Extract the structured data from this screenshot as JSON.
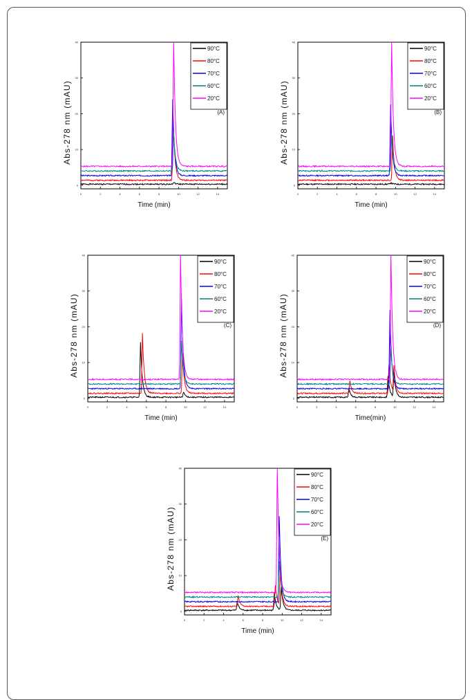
{
  "chart_data": [
    {
      "type": "line",
      "panel_label": "(A)",
      "xlabel": "Time (min)",
      "ylabel": "Abs-278 nm (mAU)",
      "xticks": [
        "0",
        "2",
        "4",
        "6",
        "8",
        "10",
        "12",
        "14"
      ],
      "yticks": [
        "0",
        "10",
        "20",
        "30",
        "40"
      ],
      "xlim": [
        0,
        15
      ],
      "ylim": [
        -1,
        40
      ],
      "legend": [
        "90°C",
        "80°C",
        "70°C",
        "60°C",
        "20°C"
      ],
      "series": [
        {
          "name": "90°C",
          "color": "#000000",
          "baseline": 0.3,
          "peaks": [
            {
              "t": 9.5,
              "h": 0.5
            }
          ]
        },
        {
          "name": "80°C",
          "color": "#ff0000",
          "baseline": 1.4,
          "peaks": [
            {
              "t": 9.45,
              "h": 18.0
            }
          ]
        },
        {
          "name": "70°C",
          "color": "#0000ff",
          "baseline": 2.7,
          "peaks": [
            {
              "t": 9.4,
              "h": 21.5
            }
          ]
        },
        {
          "name": "60°C",
          "color": "#008080",
          "baseline": 4.0,
          "peaks": [
            {
              "t": 9.5,
              "h": 11.0
            }
          ]
        },
        {
          "name": "20°C",
          "color": "#ff00ff",
          "baseline": 5.3,
          "peaks": [
            {
              "t": 9.5,
              "h": 36.5
            }
          ]
        }
      ]
    },
    {
      "type": "line",
      "panel_label": "(B)",
      "xlabel": "Time (min)",
      "ylabel": "Abs-278 nm (mAU)",
      "xticks": [
        "0",
        "2",
        "4",
        "6",
        "8",
        "10",
        "12",
        "14"
      ],
      "yticks": [
        "0",
        "10",
        "20",
        "30",
        "40"
      ],
      "xlim": [
        0,
        15
      ],
      "ylim": [
        -1,
        40
      ],
      "legend": [
        "90°C",
        "80°C",
        "70°C",
        "60°C",
        "20°C"
      ],
      "series": [
        {
          "name": "90°C",
          "color": "#000000",
          "baseline": 0.3,
          "peaks": [
            {
              "t": 9.5,
              "h": 0.4
            }
          ]
        },
        {
          "name": "80°C",
          "color": "#ff0000",
          "baseline": 1.4,
          "peaks": [
            {
              "t": 9.7,
              "h": 12.5
            }
          ]
        },
        {
          "name": "70°C",
          "color": "#0000ff",
          "baseline": 2.7,
          "peaks": [
            {
              "t": 9.5,
              "h": 20.0
            }
          ]
        },
        {
          "name": "60°C",
          "color": "#008080",
          "baseline": 4.0,
          "peaks": [
            {
              "t": 9.6,
              "h": 10.0
            }
          ]
        },
        {
          "name": "20°C",
          "color": "#ff00ff",
          "baseline": 5.3,
          "peaks": [
            {
              "t": 9.6,
              "h": 35.5
            }
          ]
        }
      ]
    },
    {
      "type": "line",
      "panel_label": "(C)",
      "xlabel": "Time (min)",
      "ylabel": "Abs-278 nm (mAU)",
      "xticks": [
        "0",
        "2",
        "4",
        "6",
        "8",
        "10",
        "12",
        "14"
      ],
      "yticks": [
        "0",
        "10",
        "20",
        "30",
        "40"
      ],
      "xlim": [
        0,
        15
      ],
      "ylim": [
        -1,
        40
      ],
      "legend": [
        "90°C",
        "80°C",
        "70°C",
        "60°C",
        "20°C"
      ],
      "series": [
        {
          "name": "90°C",
          "color": "#000000",
          "baseline": 0.3,
          "peaks": [
            {
              "t": 5.4,
              "h": 15.5
            },
            {
              "t": 9.8,
              "h": 1.5
            }
          ]
        },
        {
          "name": "80°C",
          "color": "#ff0000",
          "baseline": 1.4,
          "peaks": [
            {
              "t": 5.6,
              "h": 17.0
            },
            {
              "t": 9.7,
              "h": 11.0
            }
          ]
        },
        {
          "name": "70°C",
          "color": "#0000ff",
          "baseline": 2.7,
          "peaks": [
            {
              "t": 9.6,
              "h": 25.0
            }
          ]
        },
        {
          "name": "60°C",
          "color": "#008080",
          "baseline": 4.0,
          "peaks": [
            {
              "t": 9.6,
              "h": 12.0
            }
          ]
        },
        {
          "name": "20°C",
          "color": "#ff00ff",
          "baseline": 5.3,
          "peaks": [
            {
              "t": 9.5,
              "h": 36.0
            }
          ]
        }
      ]
    },
    {
      "type": "line",
      "panel_label": "(D)",
      "xlabel": "Time(min)",
      "ylabel": "Abs-278 nm (mAU)",
      "xticks": [
        "0",
        "2",
        "4",
        "6",
        "8",
        "10",
        "12",
        "14"
      ],
      "yticks": [
        "0",
        "10",
        "20",
        "30",
        "40"
      ],
      "xlim": [
        0,
        15
      ],
      "ylim": [
        -1,
        40
      ],
      "legend": [
        "90°C",
        "80°C",
        "70°C",
        "60°C",
        "20°C"
      ],
      "series": [
        {
          "name": "90°C",
          "color": "#000000",
          "baseline": 0.3,
          "peaks": [
            {
              "t": 5.3,
              "h": 2.5
            },
            {
              "t": 9.3,
              "h": 6.0
            },
            {
              "t": 9.9,
              "h": 7.0
            }
          ]
        },
        {
          "name": "80°C",
          "color": "#ff0000",
          "baseline": 1.4,
          "peaks": [
            {
              "t": 5.4,
              "h": 3.5
            },
            {
              "t": 9.4,
              "h": 8.0
            },
            {
              "t": 9.9,
              "h": 7.5
            }
          ]
        },
        {
          "name": "70°C",
          "color": "#0000ff",
          "baseline": 2.7,
          "peaks": [
            {
              "t": 9.5,
              "h": 22.0
            }
          ]
        },
        {
          "name": "60°C",
          "color": "#008080",
          "baseline": 4.0,
          "peaks": [
            {
              "t": 9.6,
              "h": 10.0
            }
          ]
        },
        {
          "name": "20°C",
          "color": "#ff00ff",
          "baseline": 5.3,
          "peaks": [
            {
              "t": 9.6,
              "h": 35.5
            }
          ]
        }
      ]
    },
    {
      "type": "line",
      "panel_label": "(E)",
      "xlabel": "Time (min)",
      "ylabel": "Abs-278 nm (mAU)",
      "xticks": [
        "0",
        "2",
        "4",
        "6",
        "8",
        "10",
        "12",
        "14"
      ],
      "yticks": [
        "0",
        "10",
        "20",
        "30",
        "40"
      ],
      "xlim": [
        0,
        15
      ],
      "ylim": [
        -1,
        40
      ],
      "legend": [
        "90°C",
        "80°C",
        "70°C",
        "60°C",
        "20°C"
      ],
      "series": [
        {
          "name": "90°C",
          "color": "#000000",
          "baseline": 0.3,
          "peaks": [
            {
              "t": 5.4,
              "h": 2.5
            },
            {
              "t": 9.2,
              "h": 5.0
            },
            {
              "t": 9.9,
              "h": 6.5
            }
          ]
        },
        {
          "name": "80°C",
          "color": "#ff0000",
          "baseline": 1.4,
          "peaks": [
            {
              "t": 5.5,
              "h": 3.0
            },
            {
              "t": 9.3,
              "h": 6.0
            },
            {
              "t": 9.8,
              "h": 10.5
            }
          ]
        },
        {
          "name": "70°C",
          "color": "#0000ff",
          "baseline": 2.7,
          "peaks": [
            {
              "t": 9.7,
              "h": 24.0
            }
          ]
        },
        {
          "name": "60°C",
          "color": "#008080",
          "baseline": 4.0,
          "peaks": [
            {
              "t": 9.7,
              "h": 10.0
            }
          ]
        },
        {
          "name": "20°C",
          "color": "#ff00ff",
          "baseline": 5.3,
          "peaks": [
            {
              "t": 9.5,
              "h": 36.0
            }
          ]
        }
      ]
    }
  ]
}
